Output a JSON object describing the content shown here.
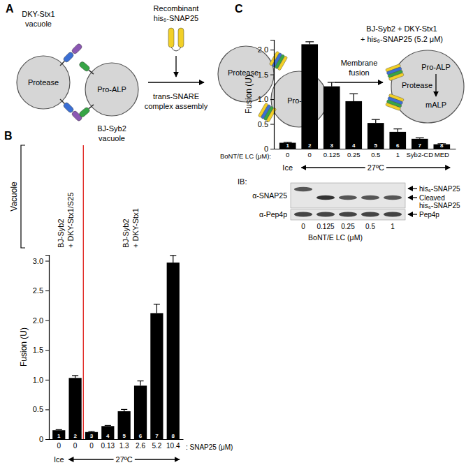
{
  "diagram": {
    "panel": "A",
    "vacuole_1": {
      "label": [
        "DKY-Stx1",
        "vacuole"
      ],
      "content": "Protease"
    },
    "vacuole_2": {
      "label": [
        "BJ-Syb2",
        "vacuole"
      ],
      "content": "Pro-ALP"
    },
    "reagent": [
      "Recombinant",
      "his₆-SNAP25"
    ],
    "step_1": [
      "trans-SNARE",
      "complex assembly"
    ],
    "step_2": [
      "Membrane",
      "fusion"
    ],
    "docked": [
      "Protease",
      "Pro-ALP"
    ],
    "fused": {
      "top": "Pro-ALP",
      "side": "Protease",
      "bottom": "mALP"
    }
  },
  "chart_data": [
    {
      "type": "bar",
      "panel": "B",
      "y_label": "Fusion (U)",
      "x_label": ": SNAP25 (μM)",
      "categories": [
        "0",
        "0",
        "0",
        "0.13",
        "1.3",
        "2.6",
        "5.2",
        "10.4"
      ],
      "values": [
        0.15,
        1.03,
        0.12,
        0.22,
        0.47,
        0.9,
        2.12,
        2.97
      ],
      "errors": [
        0.01,
        0.04,
        0.01,
        0.01,
        0.03,
        0.08,
        0.15,
        0.12
      ],
      "bar_numbers": [
        1,
        2,
        3,
        4,
        5,
        6,
        7,
        8
      ],
      "color": "#000000",
      "ylim": [
        0,
        3.1
      ],
      "yticks": [
        0,
        0.5,
        {
          "value": 1,
          "label": "1.0"
        },
        1.5,
        {
          "value": 2,
          "label": "2.0"
        },
        2.5,
        {
          "value": 3,
          "label": "3.0"
        }
      ],
      "group_title": "Vacuole",
      "groups": [
        {
          "label": [
            "BJ-Syb2",
            "+ DKY-Stx1/S25"
          ],
          "start": 0,
          "end": 1
        },
        {
          "label": [
            "BJ-Syb2",
            "+ DKY-Stx1"
          ],
          "start": 2,
          "end": 7
        }
      ],
      "conditions": [
        {
          "label": "Ice",
          "start": 0,
          "end": 0
        },
        {
          "label": "27ºC",
          "start": 1,
          "end": 7
        }
      ]
    },
    {
      "type": "bar",
      "panel": "C",
      "y_label": "Fusion (U)",
      "x_label": "BoNT/E LC (μM):",
      "annotations": [
        "BJ-Syb2 + DKY-Stx1",
        "+ his₆-SNAP25 (5.2 μM)"
      ],
      "categories": [
        "0",
        "0",
        "0.125",
        "0.25",
        "0.5",
        "1",
        "Syb2-CD",
        "MED"
      ],
      "values": [
        0.12,
        2.11,
        1.26,
        0.96,
        0.52,
        0.34,
        0.2,
        0.09
      ],
      "errors": [
        0.01,
        0.05,
        0.08,
        0.15,
        0.07,
        0.06,
        0.02,
        0.01
      ],
      "bar_numbers": [
        1,
        2,
        3,
        4,
        5,
        6,
        7,
        8
      ],
      "color": "#000000",
      "ylim": [
        0,
        2.2
      ],
      "yticks": [
        0,
        0.5,
        {
          "value": 1,
          "label": "1.0"
        },
        1.5,
        {
          "value": 2,
          "label": "2.0"
        }
      ],
      "conditions": [
        {
          "label": "Ice",
          "start": 0,
          "end": 0
        },
        {
          "label": "27ºC",
          "start": 1,
          "end": 7
        }
      ]
    }
  ],
  "blot": {
    "label": "IB:",
    "rows": [
      "α-SNAP25",
      "α-Pep4p"
    ],
    "band_labels": [
      [
        "his₆-SNAP25"
      ],
      [
        "Cleaved",
        "his₆-SNAP25"
      ],
      [
        "Pep4p"
      ]
    ],
    "lanes": [
      "0",
      "0.125",
      "0.25",
      "0.5",
      "1"
    ],
    "lane_title": "BoNT/E LC (μM)"
  }
}
